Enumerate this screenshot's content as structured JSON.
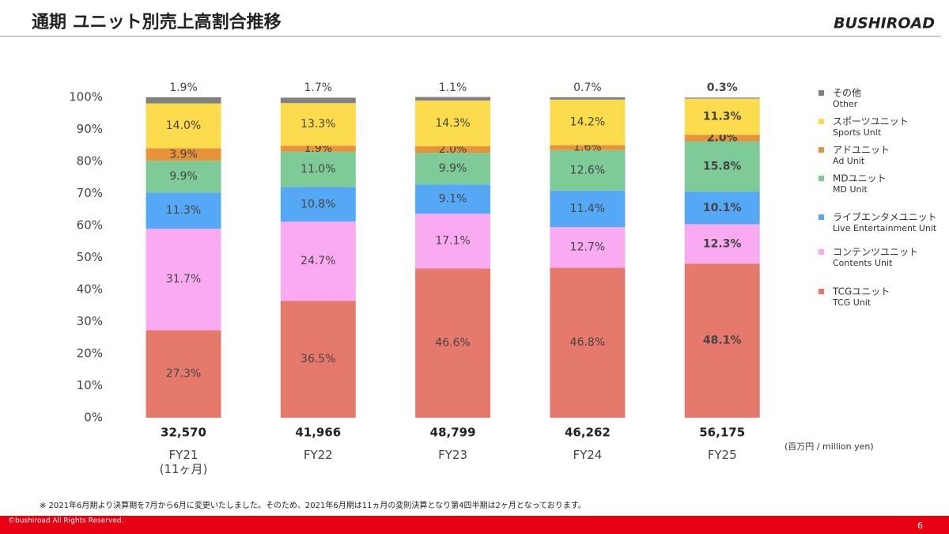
{
  "header": {
    "title": "通期 ユニット別売上高割合推移",
    "logo": "BUSHIROAD"
  },
  "chart_data": {
    "type": "stacked_bar_100",
    "categories": [
      "FY21\n(11ヶ月)",
      "FY22",
      "FY23",
      "FY24",
      "FY25"
    ],
    "totals": [
      {
        "value": 32570,
        "label": "32,570"
      },
      {
        "value": 41966,
        "label": "41,966"
      },
      {
        "value": 48799,
        "label": "48,799"
      },
      {
        "value": 46262,
        "label": "46,262"
      },
      {
        "value": 56175,
        "label": "56,175"
      }
    ],
    "totals_unit": "(百万円 / million yen)",
    "highlight_index": 4,
    "ylim": [
      0,
      100
    ],
    "yticks": [
      {
        "value": 0,
        "label": "0%"
      },
      {
        "value": 10,
        "label": "10%"
      },
      {
        "value": 20,
        "label": "20%"
      },
      {
        "value": 30,
        "label": "30%"
      },
      {
        "value": 40,
        "label": "40%"
      },
      {
        "value": 50,
        "label": "50%"
      },
      {
        "value": 60,
        "label": "60%"
      },
      {
        "value": 70,
        "label": "70%"
      },
      {
        "value": 80,
        "label": "80%"
      },
      {
        "value": 90,
        "label": "90%"
      },
      {
        "value": 100,
        "label": "100%"
      }
    ],
    "series": [
      {
        "name": "TCGユニット",
        "name_en": "TCG Unit",
        "color": "#e57a6c",
        "values": [
          27.3,
          36.5,
          46.6,
          46.8,
          48.1
        ],
        "value_labels": [
          "27.3%",
          "36.5%",
          "46.6%",
          "46.8%",
          "48.1%"
        ]
      },
      {
        "name": "コンテンツユニット",
        "name_en": "Contents Unit",
        "color": "#f9aaf0",
        "values": [
          31.7,
          24.7,
          17.1,
          12.7,
          12.3
        ],
        "value_labels": [
          "31.7%",
          "24.7%",
          "17.1%",
          "12.7%",
          "12.3%"
        ]
      },
      {
        "name": "ライブエンタメユニット",
        "name_en": "Live Entertainment Unit",
        "color": "#55a8f5",
        "values": [
          11.3,
          10.8,
          9.1,
          11.4,
          10.1
        ],
        "value_labels": [
          "11.3%",
          "10.8%",
          "9.1%",
          "11.4%",
          "10.1%"
        ]
      },
      {
        "name": "MDユニット",
        "name_en": "MD Unit",
        "color": "#7ecb98",
        "values": [
          9.9,
          11.0,
          9.9,
          12.6,
          15.8
        ],
        "value_labels": [
          "9.9%",
          "11.0%",
          "9.9%",
          "12.6%",
          "15.8%"
        ]
      },
      {
        "name": "アドユニット",
        "name_en": "Ad Unit",
        "color": "#e8923a",
        "values": [
          3.9,
          1.9,
          2.0,
          1.6,
          2.0
        ],
        "value_labels": [
          "3.9%",
          "1.9%",
          "2.0%",
          "1.6%",
          "2.0%"
        ]
      },
      {
        "name": "スポーツユニット",
        "name_en": "Sports Unit",
        "color": "#fcdc4d",
        "values": [
          14.0,
          13.3,
          14.3,
          14.2,
          11.3
        ],
        "value_labels": [
          "14.0%",
          "13.3%",
          "14.3%",
          "14.2%",
          "11.3%"
        ]
      },
      {
        "name": "その他",
        "name_en": "Other",
        "color": "#808080",
        "values": [
          1.9,
          1.7,
          1.1,
          0.7,
          0.3
        ],
        "value_labels": [
          "1.9%",
          "1.7%",
          "1.1%",
          "0.7%",
          "0.3%"
        ]
      }
    ]
  },
  "footer": {
    "note": "※ 2021年6月期より決算期を7月から6月に変更いたしました。そのため、2021年6月期は11ヵ月の変則決算となり第4四半期は2ヶ月となっております。",
    "copyright": "©bushiroad All Rights Reserved.",
    "page": "6"
  }
}
